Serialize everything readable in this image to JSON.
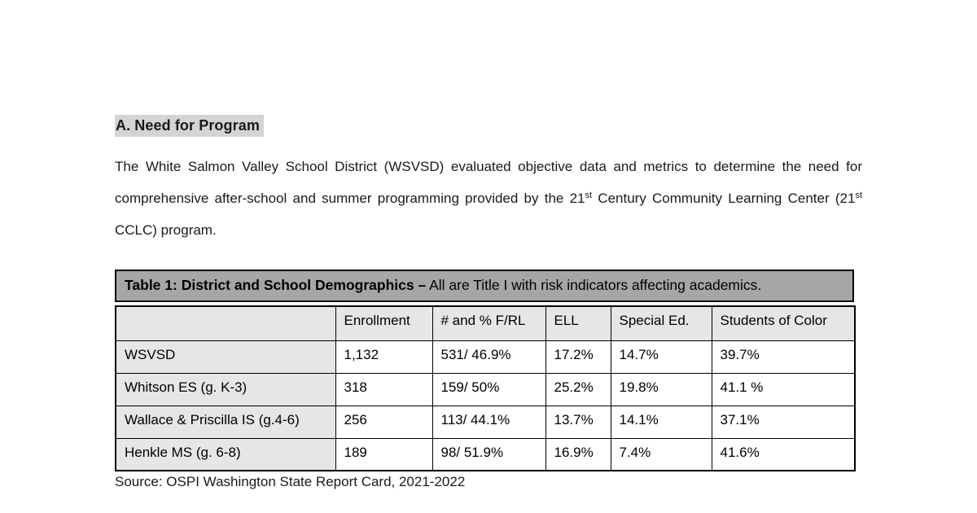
{
  "document": {
    "heading": "A. Need for Program",
    "paragraph": {
      "part1": "The White Salmon Valley School District (WSVSD) evaluated objective data and metrics to determine the need for comprehensive after-school and summer programming provided by the 21",
      "sup1": "st",
      "part2": " Century Community Learning Center (21",
      "sup2": "st",
      "part3": " CCLC) program."
    },
    "source_note": "Source: OSPI Washington State Report Card, 2021-2022"
  },
  "table": {
    "caption_bold": "Table 1: District and School Demographics –",
    "caption_rest": " All are Title I with risk indicators affecting academics.",
    "columns": [
      "",
      "Enrollment",
      "# and % F/RL",
      "ELL",
      "Special Ed.",
      "Students of Color"
    ],
    "rows": [
      {
        "label": "WSVSD",
        "values": [
          "1,132",
          "531/ 46.9%",
          "17.2%",
          "14.7%",
          "39.7%"
        ]
      },
      {
        "label": "Whitson ES (g. K-3)",
        "values": [
          "318",
          "159/ 50%",
          "25.2%",
          "19.8%",
          "41.1 %"
        ]
      },
      {
        "label": "Wallace & Priscilla IS (g.4-6)",
        "values": [
          "256",
          "113/ 44.1%",
          "13.7%",
          "14.1%",
          "37.1%"
        ]
      },
      {
        "label": "Henkle MS (g. 6-8)",
        "values": [
          "189",
          "98/ 51.9%",
          "16.9%",
          "7.4%",
          "41.6%"
        ]
      }
    ],
    "colors": {
      "caption_background": "#a6a6a6",
      "header_background": "#e7e6e6",
      "row_label_background": "#e7e6e6",
      "border": "#000000",
      "heading_highlight": "#d4d4d4",
      "page_background": "#ffffff"
    }
  }
}
